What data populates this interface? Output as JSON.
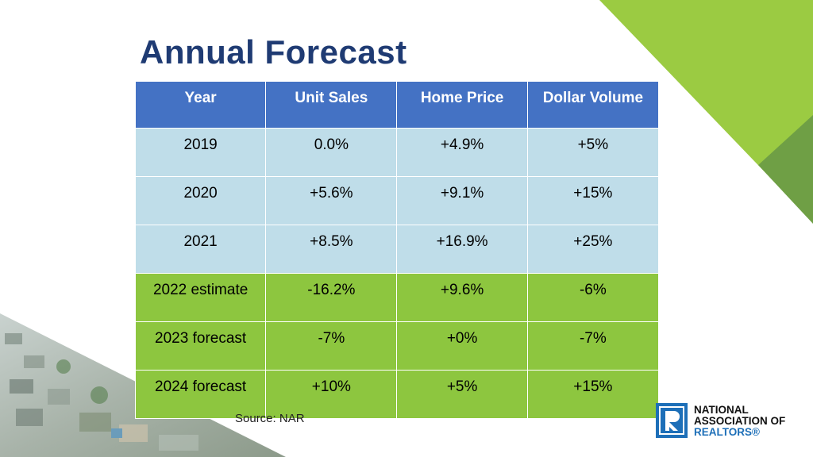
{
  "title": "Annual Forecast",
  "table": {
    "headers": [
      "Year",
      "Unit Sales",
      "Home Price",
      "Dollar Volume"
    ],
    "rows": [
      [
        "2019",
        "0.0%",
        "+4.9%",
        "+5%"
      ],
      [
        "2020",
        "+5.6%",
        "+9.1%",
        "+15%"
      ],
      [
        "2021",
        "+8.5%",
        "+16.9%",
        "+25%"
      ],
      [
        "2022 estimate",
        "-16.2%",
        "+9.6%",
        "-6%"
      ],
      [
        "2023 forecast",
        "-7%",
        "+0%",
        "-7%"
      ],
      [
        "2024 forecast",
        "+10%",
        "+5%",
        "+15%"
      ]
    ]
  },
  "source": "Source: NAR",
  "logo": {
    "line1": "NATIONAL",
    "line2": "ASSOCIATION OF",
    "line3": "REALTORS®"
  },
  "colors": {
    "title": "#1f3b73",
    "header_bg": "#4472c4",
    "actual_row_bg": "#bfdde9",
    "forecast_row_bg": "#8dc63f",
    "accent_green": "#8dc63f",
    "logo_blue": "#1d6fb8"
  }
}
